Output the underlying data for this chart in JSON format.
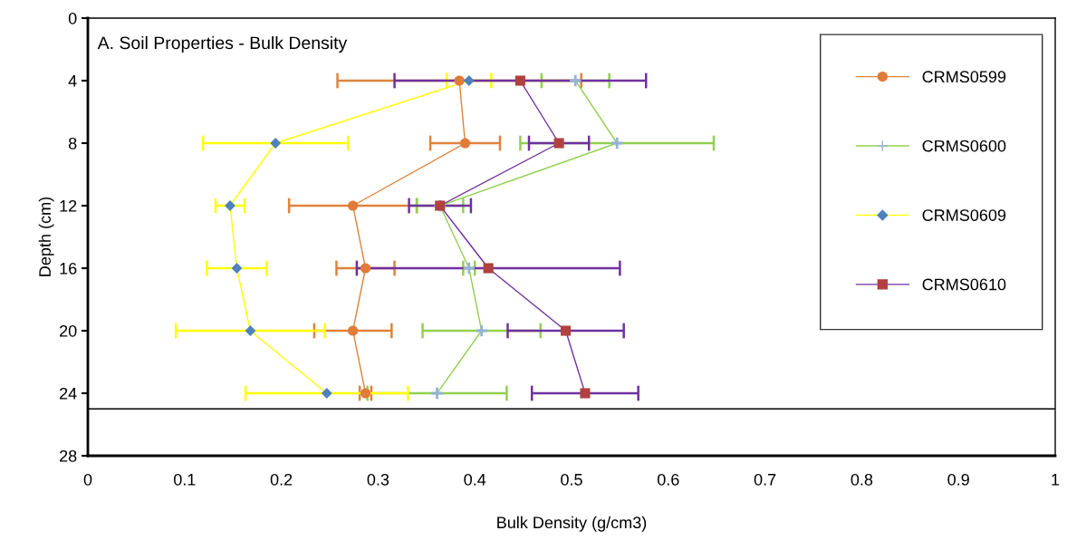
{
  "chart_data": {
    "type": "line",
    "xlabel": "Bulk Density (g/cm3)",
    "ylabel": "Depth (cm)",
    "annotations": [
      "A. Soil Properties - Bulk Density"
    ],
    "xlim": [
      0,
      1
    ],
    "xticks": [
      0,
      0.1,
      0.2,
      0.3,
      0.4,
      0.5,
      0.6,
      0.7,
      0.8,
      0.9,
      1
    ],
    "ylim": [
      28,
      0
    ],
    "yticks": [
      0,
      4,
      8,
      12,
      16,
      20,
      24,
      28
    ],
    "grid": false,
    "legend": "right",
    "ref_lines": [
      {
        "axis": "y",
        "value": 25,
        "color": "#000000"
      }
    ],
    "series": [
      {
        "name": "CRMS0599",
        "color": "#e0823a",
        "marker": "circle",
        "colors": [
          "#e07b39",
          "#e07b39",
          "#e07b39",
          "#e07b39",
          "#e07b39",
          "#e07b39"
        ],
        "x": [
          0.384,
          0.39,
          0.274,
          0.287,
          0.274,
          0.287
        ],
        "values": [
          4,
          8,
          12,
          16,
          20,
          24
        ],
        "xerrors": [
          0.126,
          0.036,
          0.066,
          0.03,
          0.04,
          0.006
        ]
      },
      {
        "name": "CRMS0600",
        "color": "#92d050",
        "marker": "cross",
        "colors": [
          "#95b3d7",
          "#95b3d7",
          "#95b3d7",
          "#95b3d7",
          "#95b3d7",
          "#95b3d7"
        ],
        "x": [
          0.504,
          0.547,
          0.364,
          0.394,
          0.407,
          0.361
        ],
        "values": [
          4,
          8,
          12,
          16,
          20,
          24
        ],
        "xerrors": [
          0.035,
          0.1,
          0.024,
          0.006,
          0.061,
          0.072
        ]
      },
      {
        "name": "CRMS0609",
        "color": "#ffff00",
        "marker": "diamond",
        "colors": [
          "#4f81bd",
          "#4f81bd",
          "#4f81bd",
          "#4f81bd",
          "#4f81bd",
          "#4f81bd"
        ],
        "x": [
          0.394,
          0.194,
          0.147,
          0.154,
          0.168,
          0.247
        ],
        "values": [
          4,
          8,
          12,
          16,
          20,
          24
        ],
        "xerrors": [
          0.023,
          0.075,
          0.015,
          0.031,
          0.077,
          0.084
        ]
      },
      {
        "name": "CRMS0610",
        "color": "#7030a0",
        "marker": "square",
        "colors": [
          "#b0413e",
          "#b0413e",
          "#b0413e",
          "#b0413e",
          "#b0413e",
          "#b0413e"
        ],
        "x": [
          0.447,
          0.487,
          0.364,
          0.414,
          0.494,
          0.514
        ],
        "values": [
          4,
          8,
          12,
          16,
          20,
          24
        ],
        "xerrors": [
          0.13,
          0.031,
          0.032,
          0.136,
          0.06,
          0.055
        ]
      }
    ]
  }
}
